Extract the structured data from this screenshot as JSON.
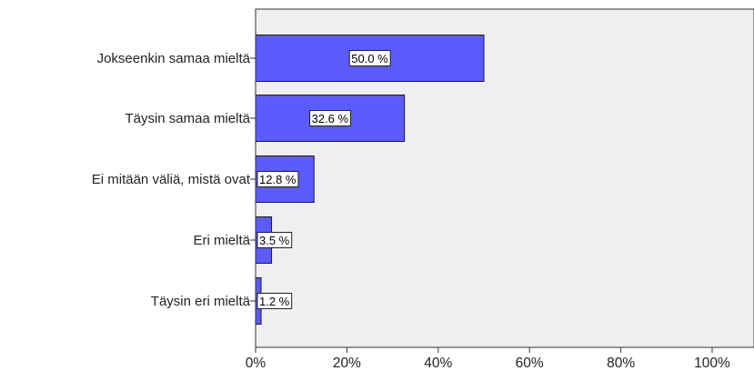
{
  "chart_data": {
    "type": "bar",
    "orientation": "horizontal",
    "categories": [
      "Jokseenkin samaa mieltä",
      "Täysin samaa mieltä",
      "Ei mitään väliä, mistä ovat",
      "Eri mieltä",
      "Täysin eri mieltä"
    ],
    "values": [
      50.0,
      32.6,
      12.8,
      3.5,
      1.2
    ],
    "data_labels": [
      "50.0 %",
      "32.6 %",
      "12.8 %",
      "3.5 %",
      "1.2 %"
    ],
    "x_ticks": [
      0,
      20,
      40,
      60,
      80,
      100
    ],
    "x_tick_labels": [
      "0%",
      "20%",
      "40%",
      "60%",
      "80%",
      "100%"
    ],
    "xlim": [
      0,
      110
    ],
    "title": "",
    "xlabel": "",
    "ylabel": "",
    "grid": false,
    "legend": "none",
    "colors": {
      "bar": "#5b5bff",
      "bar_stroke": "#1a1a1a",
      "plot_background": "#efefef",
      "axis": "#333333"
    }
  }
}
